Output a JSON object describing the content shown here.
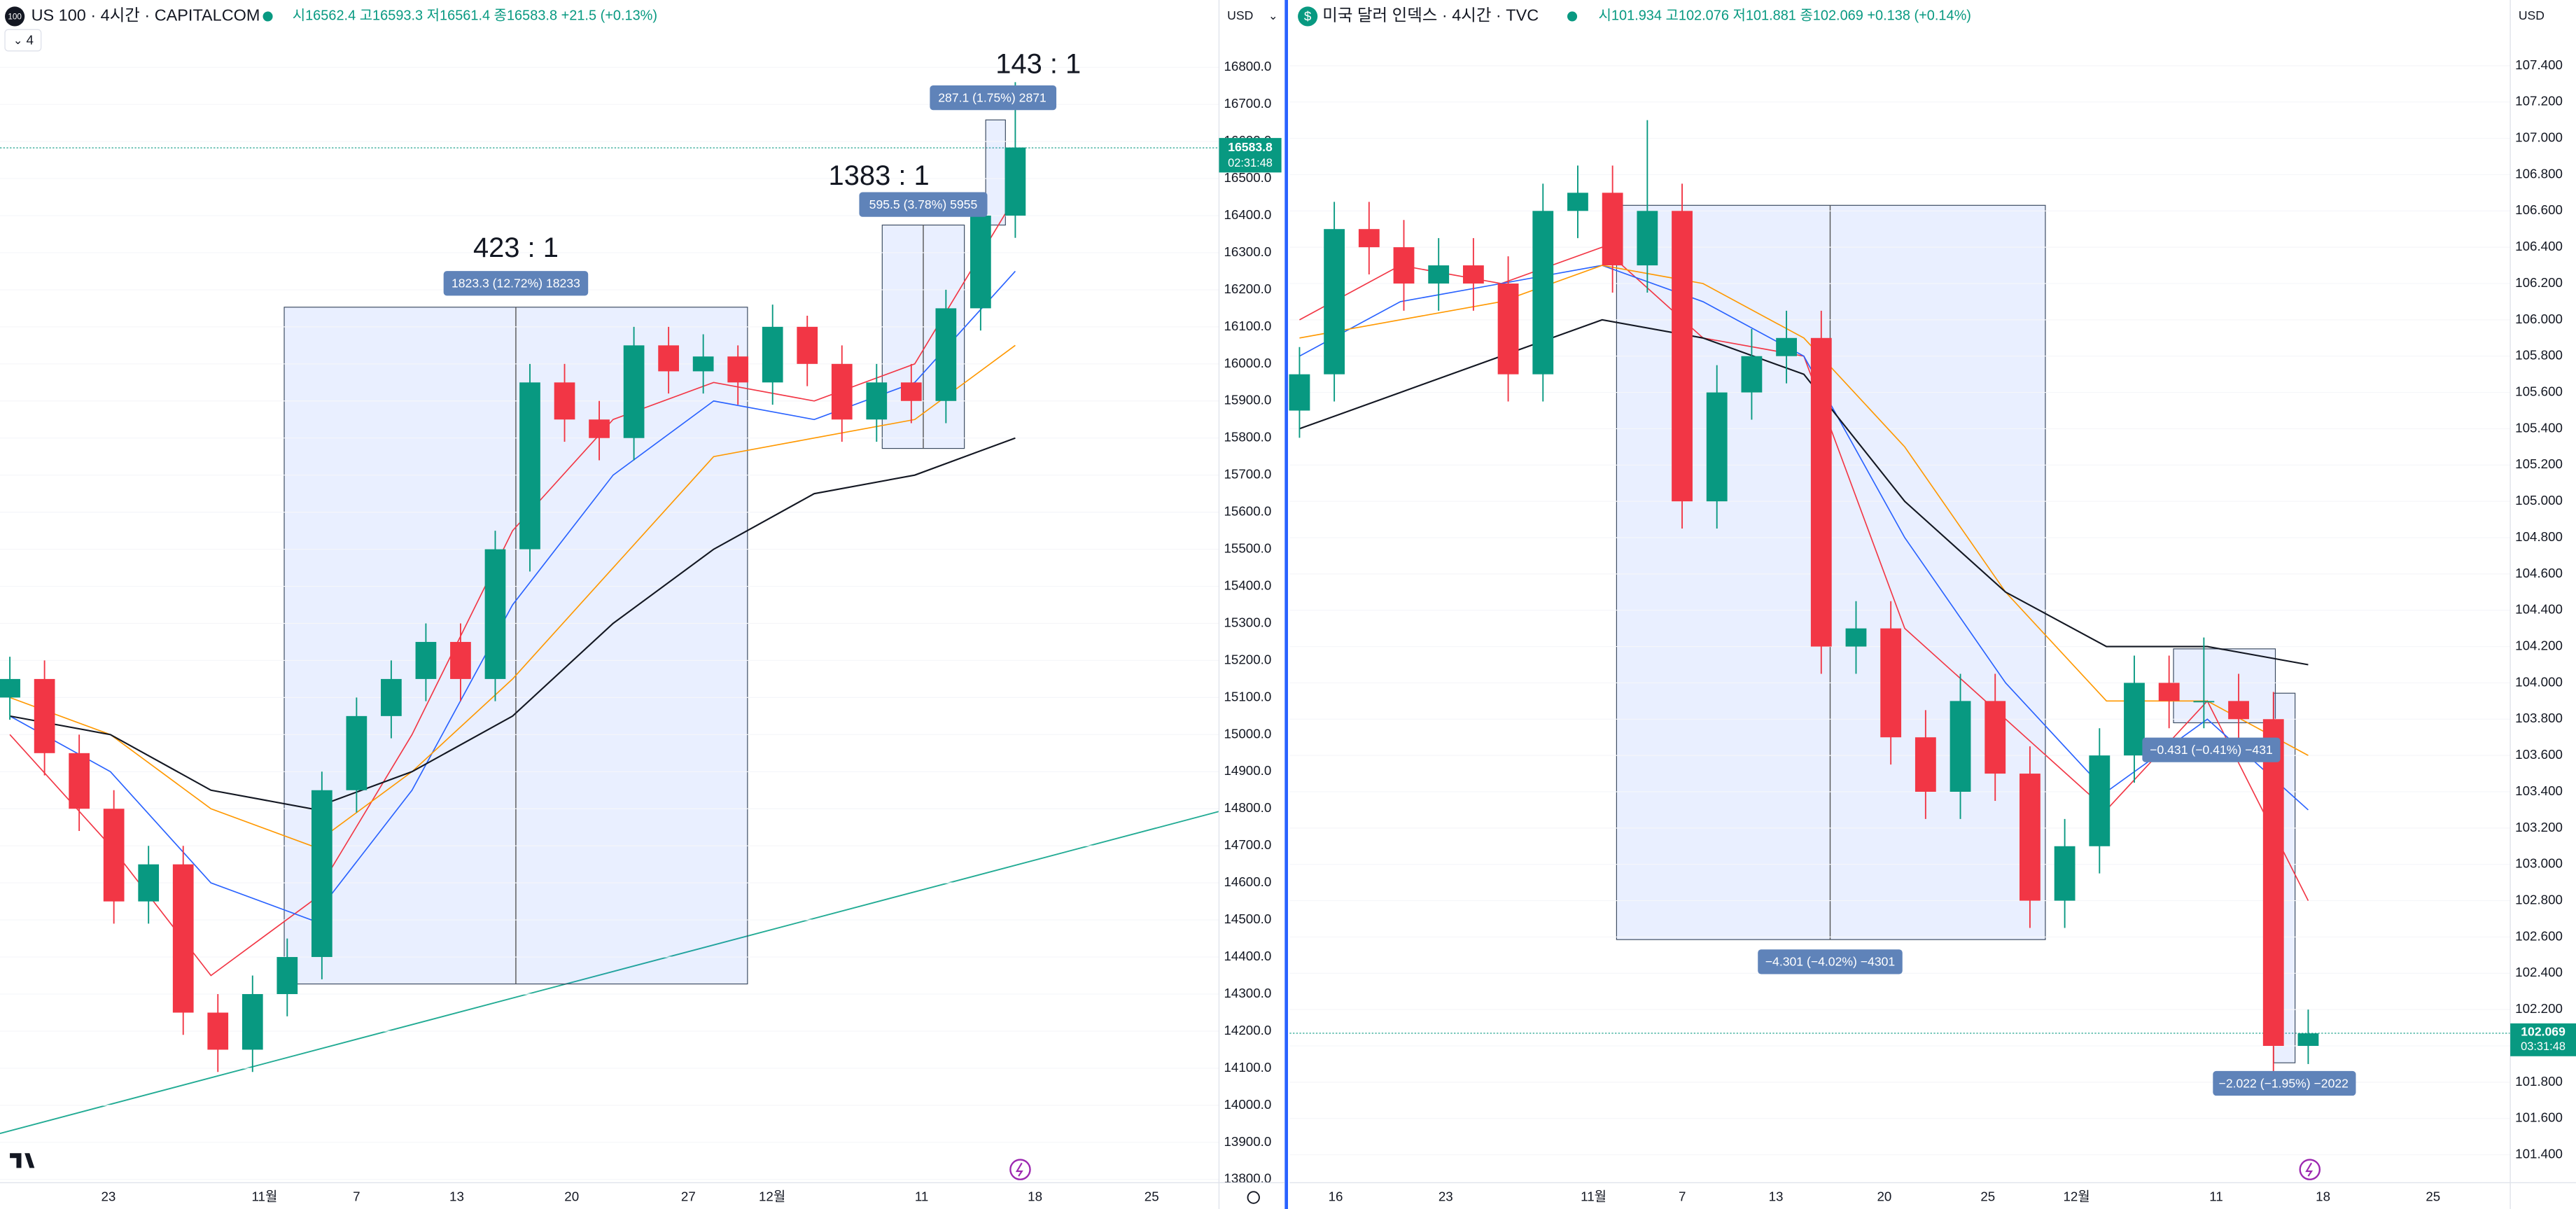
{
  "chart_data": [
    {
      "type": "candlestick",
      "symbol_icon": "100",
      "title": "US 100 · 4시간 · CAPITALCOM",
      "ohlc_text": "시16562.4 고16593.3 저16561.4 종16583.8 +21.5 (+0.13%)",
      "indicator_count": "4",
      "currency": "USD",
      "last_price": 16583.8,
      "countdown": "02:31:48",
      "up_color": "#089981",
      "down_color": "#f23645",
      "ylim": [
        13800,
        16800
      ],
      "yticks": [
        {
          "value": 13800,
          "label": "13800.0"
        },
        {
          "value": 13900,
          "label": "13900.0"
        },
        {
          "value": 14000,
          "label": "14000.0"
        },
        {
          "value": 14100,
          "label": "14100.0"
        },
        {
          "value": 14200,
          "label": "14200.0"
        },
        {
          "value": 14300,
          "label": "14300.0"
        },
        {
          "value": 14400,
          "label": "14400.0"
        },
        {
          "value": 14500,
          "label": "14500.0"
        },
        {
          "value": 14600,
          "label": "14600.0"
        },
        {
          "value": 14700,
          "label": "14700.0"
        },
        {
          "value": 14800,
          "label": "14800.0"
        },
        {
          "value": 14900,
          "label": "14900.0"
        },
        {
          "value": 15000,
          "label": "15000.0"
        },
        {
          "value": 15100,
          "label": "15100.0"
        },
        {
          "value": 15200,
          "label": "15200.0"
        },
        {
          "value": 15300,
          "label": "15300.0"
        },
        {
          "value": 15400,
          "label": "15400.0"
        },
        {
          "value": 15500,
          "label": "15500.0"
        },
        {
          "value": 15600,
          "label": "15600.0"
        },
        {
          "value": 15700,
          "label": "15700.0"
        },
        {
          "value": 15800,
          "label": "15800.0"
        },
        {
          "value": 15900,
          "label": "15900.0"
        },
        {
          "value": 16000,
          "label": "16000.0"
        },
        {
          "value": 16100,
          "label": "16100.0"
        },
        {
          "value": 16200,
          "label": "16200.0"
        },
        {
          "value": 16300,
          "label": "16300.0"
        },
        {
          "value": 16400,
          "label": "16400.0"
        },
        {
          "value": 16500,
          "label": "16500.0"
        },
        {
          "value": 16600,
          "label": "16600.0"
        },
        {
          "value": 16700,
          "label": "16700.0"
        },
        {
          "value": 16800,
          "label": "16800.0"
        }
      ],
      "x_labels": [
        "23",
        "11월",
        "7",
        "13",
        "20",
        "27",
        "12월",
        "11",
        "18",
        "25"
      ],
      "candles": {
        "open": [
          15100,
          15150,
          14950,
          14800,
          14550,
          14650,
          14250,
          14150,
          14300,
          14400,
          14850,
          15050,
          15150,
          15250,
          15150,
          15500,
          15950,
          15850,
          15800,
          16050,
          15980,
          16020,
          15950,
          16100,
          16000,
          15850,
          15950,
          15900,
          16150,
          16400
        ],
        "high": [
          15210,
          15200,
          15000,
          14850,
          14700,
          14700,
          14300,
          14350,
          14450,
          14900,
          15100,
          15200,
          15300,
          15300,
          15550,
          16000,
          16000,
          15900,
          16100,
          16100,
          16080,
          16050,
          16160,
          16130,
          16050,
          16000,
          16000,
          16200,
          16450,
          16760
        ],
        "low": [
          15040,
          14890,
          14740,
          14490,
          14490,
          14190,
          14090,
          14090,
          14240,
          14340,
          14790,
          14990,
          15090,
          15090,
          15090,
          15440,
          15790,
          15740,
          15740,
          15920,
          15920,
          15890,
          15890,
          15940,
          15790,
          15790,
          15840,
          15840,
          16090,
          16340
        ],
        "close": [
          15150,
          14950,
          14800,
          14550,
          14650,
          14250,
          14150,
          14300,
          14400,
          14850,
          15050,
          15150,
          15250,
          15150,
          15500,
          15950,
          15850,
          15800,
          16050,
          15980,
          16020,
          15950,
          16100,
          16000,
          15850,
          15950,
          15900,
          16150,
          16400,
          16583.8
        ]
      },
      "series": [
        {
          "color": "#f23645",
          "values": [
            15000,
            14700,
            14350,
            14550,
            15000,
            15550,
            15850,
            15950,
            15900,
            16000,
            16450
          ]
        },
        {
          "color": "#2962ff",
          "values": [
            15050,
            14900,
            14600,
            14500,
            14850,
            15350,
            15700,
            15900,
            15850,
            15950,
            16250
          ]
        },
        {
          "color": "#ff9800",
          "values": [
            15100,
            15000,
            14800,
            14700,
            14900,
            15150,
            15450,
            15750,
            15800,
            15850,
            16050
          ]
        },
        {
          "color": "#131722",
          "values": [
            15050,
            15000,
            14850,
            14800,
            14900,
            15050,
            15300,
            15500,
            15650,
            15700,
            15800
          ]
        }
      ],
      "measurements": [
        {
          "label": "1823.3 (12.72%) 18233",
          "ratio": "423 : 1"
        },
        {
          "label": "595.5 (3.78%) 5955",
          "ratio": "1383 : 1"
        },
        {
          "label": "287.1 (1.75%) 2871",
          "ratio": "143 : 1"
        }
      ]
    },
    {
      "type": "candlestick",
      "symbol_icon": "$",
      "title": "미국 달러 인덱스 · 4시간 · TVC",
      "ohlc_text": "시101.934 고102.076 저101.881 종102.069 +0.138 (+0.14%)",
      "currency": "USD",
      "last_price": 102.069,
      "countdown": "03:31:48",
      "up_color": "#089981",
      "down_color": "#f23645",
      "ylim": [
        101.4,
        107.4
      ],
      "yticks": [
        {
          "value": 101.4,
          "label": "101.400"
        },
        {
          "value": 101.6,
          "label": "101.600"
        },
        {
          "value": 101.8,
          "label": "101.800"
        },
        {
          "value": 102,
          "label": "102.000"
        },
        {
          "value": 102.2,
          "label": "102.200"
        },
        {
          "value": 102.4,
          "label": "102.400"
        },
        {
          "value": 102.6,
          "label": "102.600"
        },
        {
          "value": 102.8,
          "label": "102.800"
        },
        {
          "value": 103,
          "label": "103.000"
        },
        {
          "value": 103.2,
          "label": "103.200"
        },
        {
          "value": 103.4,
          "label": "103.400"
        },
        {
          "value": 103.6,
          "label": "103.600"
        },
        {
          "value": 103.8,
          "label": "103.800"
        },
        {
          "value": 104,
          "label": "104.000"
        },
        {
          "value": 104.2,
          "label": "104.200"
        },
        {
          "value": 104.4,
          "label": "104.400"
        },
        {
          "value": 104.6,
          "label": "104.600"
        },
        {
          "value": 104.8,
          "label": "104.800"
        },
        {
          "value": 105,
          "label": "105.000"
        },
        {
          "value": 105.2,
          "label": "105.200"
        },
        {
          "value": 105.4,
          "label": "105.400"
        },
        {
          "value": 105.6,
          "label": "105.600"
        },
        {
          "value": 105.8,
          "label": "105.800"
        },
        {
          "value": 106,
          "label": "106.000"
        },
        {
          "value": 106.2,
          "label": "106.200"
        },
        {
          "value": 106.4,
          "label": "106.400"
        },
        {
          "value": 106.6,
          "label": "106.600"
        },
        {
          "value": 106.8,
          "label": "106.800"
        },
        {
          "value": 107,
          "label": "107.000"
        },
        {
          "value": 107.2,
          "label": "107.200"
        },
        {
          "value": 107.4,
          "label": "107.400"
        }
      ],
      "x_labels": [
        "16",
        "23",
        "11월",
        "7",
        "13",
        "20",
        "25",
        "12월",
        "11",
        "18",
        "25"
      ],
      "candles": {
        "open": [
          105.5,
          105.7,
          106.5,
          106.4,
          106.2,
          106.3,
          106.2,
          105.7,
          106.6,
          106.7,
          106.3,
          106.6,
          105.0,
          105.6,
          105.8,
          105.9,
          104.2,
          104.3,
          103.7,
          103.4,
          103.9,
          103.5,
          102.8,
          103.1,
          103.6,
          104.0,
          103.9,
          103.9,
          103.8,
          102.0
        ],
        "high": [
          105.85,
          106.65,
          106.65,
          106.55,
          106.45,
          106.45,
          106.35,
          106.75,
          106.85,
          106.85,
          107.1,
          106.75,
          105.75,
          105.95,
          106.05,
          106.05,
          104.45,
          104.45,
          103.85,
          104.05,
          104.05,
          103.65,
          103.25,
          103.75,
          104.15,
          104.15,
          104.25,
          104.05,
          103.95,
          102.2
        ],
        "low": [
          105.35,
          105.55,
          106.25,
          106.05,
          106.05,
          106.05,
          105.55,
          105.55,
          106.45,
          106.15,
          106.15,
          104.85,
          104.85,
          105.45,
          105.65,
          104.05,
          104.05,
          103.55,
          103.25,
          103.25,
          103.35,
          102.65,
          102.65,
          102.95,
          103.45,
          103.75,
          103.75,
          103.65,
          101.85,
          101.9
        ],
        "close": [
          105.7,
          106.5,
          106.4,
          106.2,
          106.3,
          106.2,
          105.7,
          106.6,
          106.7,
          106.3,
          106.6,
          105.0,
          105.6,
          105.8,
          105.9,
          104.2,
          104.3,
          103.7,
          103.4,
          103.9,
          103.5,
          102.8,
          103.1,
          103.6,
          104.0,
          103.9,
          103.9,
          103.8,
          102.0,
          102.069
        ]
      },
      "series": [
        {
          "color": "#f23645",
          "values": [
            106.0,
            106.3,
            106.2,
            106.4,
            105.9,
            105.8,
            104.3,
            103.8,
            103.3,
            103.9,
            102.8
          ]
        },
        {
          "color": "#2962ff",
          "values": [
            105.8,
            106.1,
            106.2,
            106.3,
            106.1,
            105.8,
            104.8,
            104.0,
            103.4,
            103.8,
            103.3
          ]
        },
        {
          "color": "#ff9800",
          "values": [
            105.9,
            106.0,
            106.1,
            106.3,
            106.2,
            105.9,
            105.3,
            104.5,
            103.9,
            103.9,
            103.6
          ]
        },
        {
          "color": "#131722",
          "values": [
            105.4,
            105.6,
            105.8,
            106.0,
            105.9,
            105.7,
            105.0,
            104.5,
            104.2,
            104.2,
            104.1
          ]
        }
      ],
      "measurements": [
        {
          "label": "−4.301 (−4.02%) −4301"
        },
        {
          "label": "−0.431 (−0.41%) −431"
        },
        {
          "label": "−2.022 (−1.95%) −2022"
        }
      ]
    }
  ]
}
